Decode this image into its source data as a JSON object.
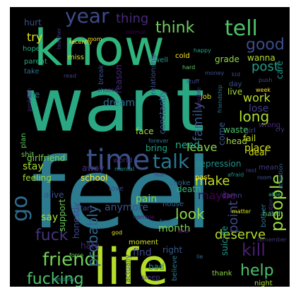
{
  "word_cloud": {
    "background_color": "#000000",
    "words": [
      {
        "text": "feel",
        "color": "#2c7b8e"
      },
      {
        "text": "want",
        "color": "#2aa884"
      },
      {
        "text": "know",
        "color": "#2fb47c"
      },
      {
        "text": "life",
        "color": "#b5de2b"
      },
      {
        "text": "time",
        "color": "#3b528b"
      },
      {
        "text": "tell",
        "color": "#4fc26a"
      },
      {
        "text": "think",
        "color": "#6cce59"
      },
      {
        "text": "year",
        "color": "#3e4a89"
      },
      {
        "text": "good",
        "color": "#3d4d8a"
      },
      {
        "text": "friend",
        "color": "#73d056"
      },
      {
        "text": "people",
        "color": "#95d840"
      },
      {
        "text": "talk",
        "color": "#2a768e"
      },
      {
        "text": "fuck",
        "color": "#46327e"
      },
      {
        "text": "kill",
        "color": "#481f70"
      },
      {
        "text": "help",
        "color": "#4ac16d"
      },
      {
        "text": "go",
        "color": "#2f6c8e"
      },
      {
        "text": "fucking",
        "color": "#4cc26c"
      },
      {
        "text": "look",
        "color": "#8bd646"
      },
      {
        "text": "deserve",
        "color": "#b2dd2d"
      },
      {
        "text": "work",
        "color": "#b8de29"
      },
      {
        "text": "long",
        "color": "#addc30"
      },
      {
        "text": "post",
        "color": "#1f9e89"
      },
      {
        "text": "leave",
        "color": "#8bd646"
      },
      {
        "text": "probably",
        "color": "#31678e"
      },
      {
        "text": "anymore",
        "color": "#3b528b"
      },
      {
        "text": "make",
        "color": "#c2df23"
      },
      {
        "text": "point",
        "color": "#3e4989"
      },
      {
        "text": "thing",
        "color": "#482878"
      },
      {
        "text": "dream",
        "color": "#2e6f8e"
      },
      {
        "text": "family",
        "color": "#39568c"
      },
      {
        "text": "right",
        "color": "#38598c"
      },
      {
        "text": "find",
        "color": "#3f4889"
      },
      {
        "text": "maybe",
        "color": "#440154"
      },
      {
        "text": "say",
        "color": "#b0dd2f"
      },
      {
        "text": "try",
        "color": "#e5e419"
      },
      {
        "text": "pain",
        "color": "#84d44b"
      },
      {
        "text": "girlfriend",
        "color": "#7ad151"
      },
      {
        "text": "feeling",
        "color": "#9bd93c"
      },
      {
        "text": "stay",
        "color": "#a8db34"
      },
      {
        "text": "hope",
        "color": "#28ae80"
      },
      {
        "text": "shit",
        "color": "#6ece58"
      },
      {
        "text": "lose",
        "color": "#433e85"
      },
      {
        "text": "away",
        "color": "#46307e"
      },
      {
        "text": "school",
        "color": "#fde725"
      },
      {
        "text": "place",
        "color": "#d0e11c"
      },
      {
        "text": "month",
        "color": "#7fd34e"
      },
      {
        "text": "plan",
        "color": "#5ec962"
      },
      {
        "text": "need",
        "color": "#22a884"
      },
      {
        "text": "live",
        "color": "#a5db36"
      },
      {
        "text": "bring",
        "color": "#22a785"
      },
      {
        "text": "face",
        "color": "#a0da39"
      },
      {
        "text": "mean",
        "color": "#443983"
      },
      {
        "text": "hate",
        "color": "#482475"
      },
      {
        "text": "hurt",
        "color": "#3b528b"
      },
      {
        "text": "come",
        "color": "#38598c"
      },
      {
        "text": "wanna",
        "color": "#b0dd2f"
      },
      {
        "text": "die",
        "color": "#2d708e"
      },
      {
        "text": "love",
        "color": "#414487"
      },
      {
        "text": "start",
        "color": "#3e4a89"
      },
      {
        "text": "world",
        "color": "#472d7b"
      },
      {
        "text": "death",
        "color": "#35b779"
      },
      {
        "text": "house",
        "color": "#31688e"
      },
      {
        "text": "bad",
        "color": "#25858e"
      },
      {
        "text": "sleep",
        "color": "#443983"
      },
      {
        "text": "believe",
        "color": "#2a788e"
      },
      {
        "text": "moment",
        "color": "#d2e21b"
      },
      {
        "text": "alive",
        "color": "#3b528b"
      },
      {
        "text": "head",
        "color": "#a2da37"
      },
      {
        "text": "deal",
        "color": "#d8e219"
      },
      {
        "text": "past",
        "color": "#fde725"
      },
      {
        "text": "waste",
        "color": "#4ec36b"
      },
      {
        "text": "fail",
        "color": "#c8e020"
      },
      {
        "text": "wrong",
        "color": "#472c7a"
      },
      {
        "text": "girl",
        "color": "#3f4788"
      },
      {
        "text": "reason",
        "color": "#472d7b"
      },
      {
        "text": "break",
        "color": "#3b528b"
      },
      {
        "text": "grade",
        "color": "#8fd744"
      },
      {
        "text": "miss",
        "color": "#d5e21a"
      },
      {
        "text": "well",
        "color": "#1fa088"
      },
      {
        "text": "suicide",
        "color": "#1e9b8a"
      },
      {
        "text": "depression",
        "color": "#21918c"
      },
      {
        "text": "constantly",
        "color": "#3b528b"
      },
      {
        "text": "support",
        "color": "#6ccd5a"
      },
      {
        "text": "honestly",
        "color": "#3e4a89"
      },
      {
        "text": "care",
        "color": "#1f958b"
      },
      {
        "text": "parent",
        "color": "#25ac82"
      },
      {
        "text": "take",
        "color": "#2e6f8e"
      },
      {
        "text": "relationship",
        "color": "#3b528b"
      },
      {
        "text": "normal",
        "color": "#440154"
      },
      {
        "text": "teacher",
        "color": "#46337f"
      },
      {
        "text": "recently",
        "color": "#fde725"
      },
      {
        "text": "choose",
        "color": "#453781"
      },
      {
        "text": "push",
        "color": "#3d4e8a"
      },
      {
        "text": "mental",
        "color": "#21918c"
      },
      {
        "text": "horrible",
        "color": "#471365"
      },
      {
        "text": "bother",
        "color": "#2c728e"
      },
      {
        "text": "night",
        "color": "#a8db34"
      },
      {
        "text": "thank",
        "color": "#8bd646"
      },
      {
        "text": "hand",
        "color": "#5cc863"
      },
      {
        "text": "force",
        "color": "#70cf57"
      },
      {
        "text": "actually",
        "color": "#3a538b"
      },
      {
        "text": "choke",
        "color": "#31688e"
      },
      {
        "text": "damn",
        "color": "#3f4788"
      },
      {
        "text": "job",
        "color": "#d2e21b"
      },
      {
        "text": "cold",
        "color": "#fde725"
      },
      {
        "text": "day",
        "color": "#3b528b"
      },
      {
        "text": "option",
        "color": "#443a83"
      },
      {
        "text": "attention",
        "color": "#34618d"
      },
      {
        "text": "problem",
        "color": "#472c7a"
      },
      {
        "text": "friendship",
        "color": "#2c728e"
      },
      {
        "text": "possible",
        "color": "#482173"
      },
      {
        "text": "forever",
        "color": "#2a778e"
      },
      {
        "text": "rest",
        "color": "#414487"
      },
      {
        "text": "happy",
        "color": "#20a386"
      },
      {
        "text": "kid",
        "color": "#3e4a89"
      },
      {
        "text": "read",
        "color": "#433d84"
      },
      {
        "text": "week",
        "color": "#fde725"
      },
      {
        "text": "afraid",
        "color": "#21918c"
      },
      {
        "text": "able",
        "color": "#29af7f"
      },
      {
        "text": "matter",
        "color": "#dde318"
      },
      {
        "text": "cry",
        "color": "#404588"
      },
      {
        "text": "room",
        "color": "#3b528b"
      },
      {
        "text": "fear",
        "color": "#3f4788"
      },
      {
        "text": "end",
        "color": "#48186a"
      },
      {
        "text": "hour",
        "color": "#2c728e"
      },
      {
        "text": "remember",
        "color": "#46337f"
      },
      {
        "text": "lie",
        "color": "#31688e"
      },
      {
        "text": "god",
        "color": "#e5e419"
      },
      {
        "text": "stuff",
        "color": "#3e4989"
      },
      {
        "text": "hard",
        "color": "#5ec962"
      },
      {
        "text": "mom",
        "color": "#fde725"
      },
      {
        "text": "anxiety",
        "color": "#21918c"
      },
      {
        "text": "money",
        "color": "#3b528b"
      }
    ]
  }
}
